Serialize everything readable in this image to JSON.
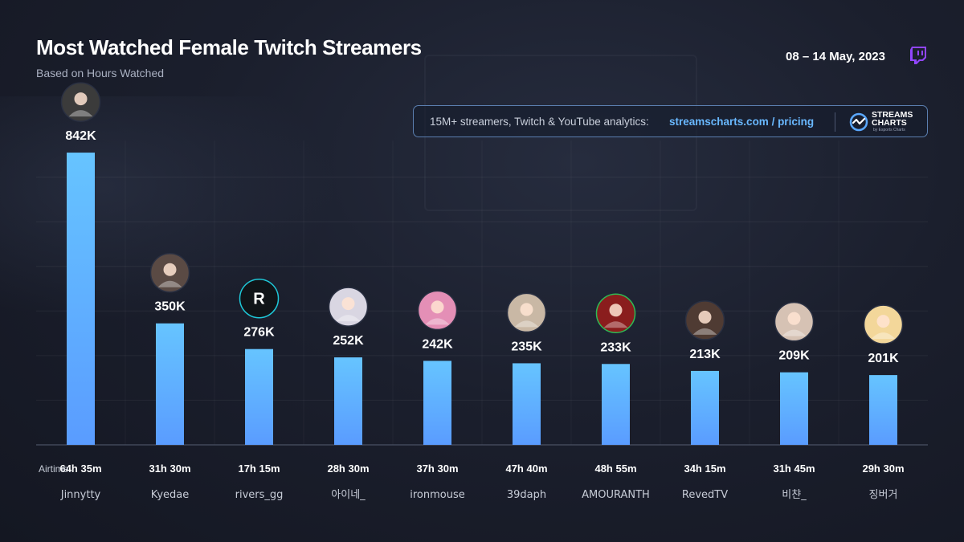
{
  "header": {
    "title": "Most Watched Female Twitch Streamers",
    "subtitle": "Based on Hours Watched",
    "date_range": "08 – 14 May, 2023"
  },
  "promo": {
    "text": "15M+ streamers, Twitch & YouTube analytics:",
    "link": "streamscharts.com / pricing",
    "logo_line1": "STREAMS",
    "logo_line2": "CHARTS",
    "logo_sub": "by Esports Charts"
  },
  "colors": {
    "bar_top": "#66c4ff",
    "bar_bottom": "#5a9cff",
    "twitch": "#9146ff"
  },
  "chart_data": {
    "type": "bar",
    "title": "Most Watched Female Twitch Streamers",
    "subtitle": "Based on Hours Watched",
    "ylim": [
      0,
      900000
    ],
    "grid": true,
    "airtime_label": "Airtime:",
    "categories": [
      "Jinnytty",
      "Kyedae",
      "rivers_gg",
      "아이네_",
      "ironmouse",
      "39daph",
      "AMOURANTH",
      "RevedTV",
      "비챤_",
      "징버거"
    ],
    "values": [
      842000,
      350000,
      276000,
      252000,
      242000,
      235000,
      233000,
      213000,
      209000,
      201000
    ],
    "value_labels": [
      "842K",
      "350K",
      "276K",
      "252K",
      "242K",
      "235K",
      "233K",
      "213K",
      "209K",
      "201K"
    ],
    "airtime": [
      "64h 35m",
      "31h 30m",
      "17h 15m",
      "28h 30m",
      "37h 30m",
      "47h 40m",
      "48h 55m",
      "34h 15m",
      "31h 45m",
      "29h 30m"
    ],
    "avatars": [
      "avatar-photo-icon",
      "avatar-photo-icon",
      "brand-logo-icon",
      "anime-avatar-icon",
      "anime-avatar-icon",
      "cat-avatar-icon",
      "avatar-photo-icon",
      "avatar-photo-icon",
      "anime-avatar-icon",
      "anime-avatar-icon"
    ]
  }
}
